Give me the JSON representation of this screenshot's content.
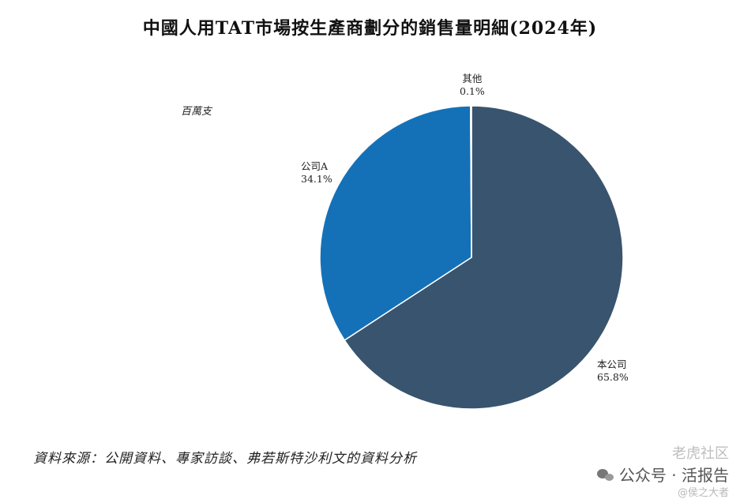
{
  "title": "中國人用TAT市場按生產商劃分的銷售量明細(2024年)",
  "unit_label": "百萬支",
  "source_note": "資料來源：公開資料、專家訪談、弗若斯特沙利文的資料分析",
  "watermark": {
    "top": "老虎社区",
    "main": "公众号 · 活报告",
    "sub": "@侯之大者"
  },
  "chart_data": {
    "type": "pie",
    "title": "中國人用TAT市場按生產商劃分的銷售量明細(2024年)",
    "unit": "百萬支",
    "categories": [
      "本公司",
      "公司A",
      "其他"
    ],
    "values": [
      65.8,
      34.1,
      0.1
    ],
    "value_labels": [
      "65.8%",
      "34.1%",
      "0.1%"
    ],
    "colors": [
      "#39546e",
      "#1471b8",
      "#8aa2b8"
    ],
    "start": "12 o'clock, clockwise"
  }
}
